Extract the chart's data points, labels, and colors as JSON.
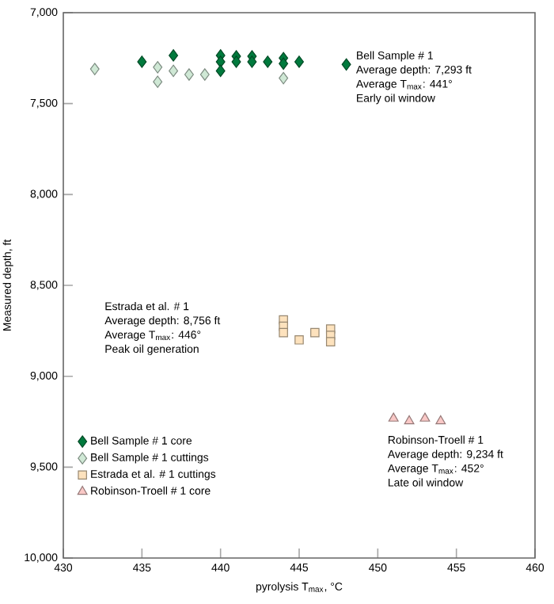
{
  "chart_data": {
    "type": "scatter",
    "xlabel": "pyrolysis T$_{max}$, °C",
    "ylabel": "Measured depth, ft",
    "xlim": [
      430,
      460
    ],
    "xticks": [
      430,
      435,
      440,
      445,
      450,
      455,
      460
    ],
    "ylim": [
      10000,
      7000
    ],
    "yticks": [
      {
        "value": 7000,
        "label": "7,000"
      },
      {
        "value": 7500,
        "label": "7,500"
      },
      {
        "value": 8000,
        "label": "8,000"
      },
      {
        "value": 8500,
        "label": "8,500"
      },
      {
        "value": 9000,
        "label": "9,000"
      },
      {
        "value": 9500,
        "label": "9,500"
      },
      {
        "value": 10000,
        "label": "10,000"
      }
    ],
    "grid": false,
    "legend": "bottom left",
    "series": [
      {
        "name": "Bell Sample # 1 core",
        "color": "#007a3d",
        "marker": "diamond",
        "x": [
          435,
          437,
          440,
          440,
          440,
          441,
          441,
          442,
          442,
          443,
          444,
          444,
          445,
          448
        ],
        "values": [
          7270,
          7235,
          7235,
          7270,
          7320,
          7240,
          7270,
          7240,
          7270,
          7270,
          7250,
          7280,
          7270,
          7285
        ]
      },
      {
        "name": "Bell Sample # 1 cuttings",
        "color": "#cfe8d5",
        "marker": "diamond",
        "x": [
          432,
          436,
          436,
          437,
          438,
          439,
          444
        ],
        "values": [
          7310,
          7300,
          7380,
          7320,
          7340,
          7340,
          7360
        ]
      },
      {
        "name": "Estrada et al. # 1 cuttings",
        "color": "#fde2bd",
        "marker": "square",
        "x": [
          444,
          444,
          444,
          445,
          446,
          447,
          447,
          447
        ],
        "values": [
          8690,
          8725,
          8760,
          8800,
          8760,
          8740,
          8775,
          8810
        ]
      },
      {
        "name": "Robinson-Troell # 1 core",
        "color": "#f9c8c6",
        "marker": "triangle",
        "x": [
          451,
          452,
          453,
          454
        ],
        "values": [
          9232,
          9247,
          9232,
          9247
        ]
      }
    ],
    "annotations": [
      "Bell Sample # 1",
      "Average depth: 7,293 ft",
      "Average T$_{max}$: 441°",
      "Early oil window",
      "Estrada et al. # 1",
      "Average depth: 8,756 ft",
      "Average T$_{max}$: 446°",
      "Peak oil generation",
      "Robinson-Troell # 1",
      "Average depth: 9,234 ft",
      "Average T$_{max}$: 452°",
      "Late oil window"
    ]
  }
}
